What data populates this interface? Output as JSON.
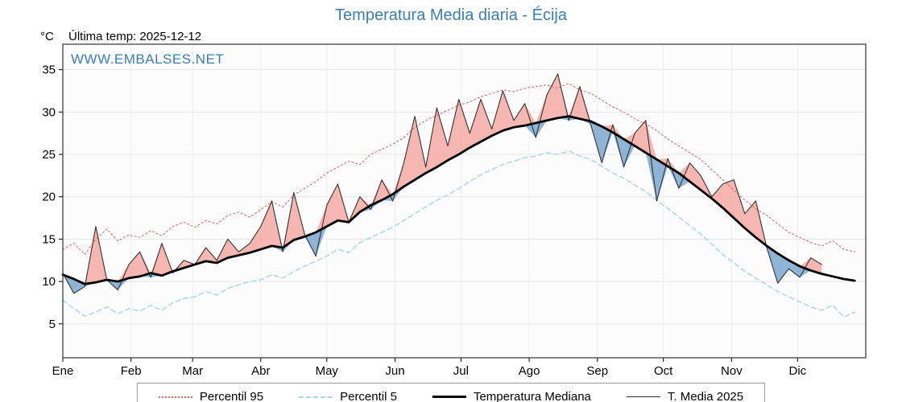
{
  "header": {
    "title": "Temperatura Media diaria - Écija",
    "unit_label": "°C",
    "last_temp_label": "Última temp: 2025-12-12",
    "watermark": "WWW.EMBALSES.NET"
  },
  "colors": {
    "title": "#3b7eb3",
    "watermark": "#3b7eb3",
    "percentil95": "#e05c5c",
    "percentil5": "#a9d6e5",
    "mediana": "#000000",
    "t_media_2025": "#333333",
    "fill_above": "#f4a9a3",
    "fill_below": "#7ba7cf",
    "grid": "#e6e6e6",
    "plot_bg": "#fcfcfc",
    "plot_border": "#333333"
  },
  "legend": [
    {
      "label": "Percentil 95",
      "style": "dotted",
      "color": "#e05c5c"
    },
    {
      "label": "Percentil 5",
      "style": "dashed",
      "color": "#a9d6e5"
    },
    {
      "label": "Temperatura Mediana",
      "style": "solid-thick",
      "color": "#000000"
    },
    {
      "label": "T. Media 2025",
      "style": "solid-thin",
      "color": "#333333"
    }
  ],
  "chart_data": {
    "type": "line",
    "title": "Temperatura Media diaria - Écija",
    "xlabel": "",
    "ylabel": "°C",
    "ylim": [
      1,
      38
    ],
    "y_ticks": [
      5,
      10,
      15,
      20,
      25,
      30,
      35
    ],
    "grid": true,
    "legend_position": "bottom",
    "x_months": [
      "Ene",
      "Feb",
      "Mar",
      "Abr",
      "May",
      "Jun",
      "Jul",
      "Ago",
      "Sep",
      "Oct",
      "Nov",
      "Dic"
    ],
    "month_start_days": [
      1,
      32,
      60,
      91,
      121,
      152,
      182,
      213,
      244,
      274,
      305,
      335
    ],
    "x_unit": "day_of_year",
    "x_days": [
      1,
      6,
      11,
      16,
      21,
      26,
      31,
      36,
      41,
      46,
      51,
      56,
      61,
      66,
      71,
      76,
      81,
      86,
      91,
      96,
      101,
      106,
      111,
      116,
      121,
      126,
      131,
      136,
      141,
      146,
      151,
      156,
      161,
      166,
      171,
      176,
      181,
      186,
      191,
      196,
      201,
      206,
      211,
      216,
      221,
      226,
      231,
      236,
      241,
      246,
      251,
      256,
      261,
      266,
      271,
      276,
      281,
      286,
      291,
      296,
      301,
      306,
      311,
      316,
      321,
      326,
      331,
      336,
      341,
      346,
      351,
      356,
      361
    ],
    "series": [
      {
        "name": "Percentil 95",
        "values": [
          13.8,
          14.5,
          13.2,
          15.0,
          16.2,
          14.8,
          15.5,
          15.2,
          16.0,
          15.4,
          16.5,
          17.0,
          16.4,
          17.2,
          16.8,
          17.8,
          18.2,
          17.6,
          18.5,
          19.4,
          18.8,
          20.2,
          21.0,
          21.8,
          22.8,
          23.5,
          24.2,
          23.8,
          25.0,
          25.6,
          26.2,
          27.0,
          28.2,
          29.0,
          29.6,
          30.2,
          30.8,
          31.2,
          31.8,
          32.2,
          32.6,
          32.4,
          32.8,
          33.0,
          33.2,
          32.8,
          33.4,
          32.6,
          32.2,
          31.4,
          30.6,
          30.0,
          29.2,
          28.6,
          27.8,
          26.8,
          26.0,
          25.2,
          24.4,
          23.2,
          22.0,
          20.8,
          19.6,
          18.6,
          17.8,
          16.8,
          15.8,
          15.2,
          14.6,
          14.2,
          14.8,
          13.8,
          13.5
        ]
      },
      {
        "name": "Percentil 5",
        "values": [
          7.8,
          6.8,
          5.9,
          6.4,
          7.0,
          6.2,
          6.8,
          6.5,
          7.2,
          6.6,
          7.5,
          8.0,
          8.2,
          8.8,
          8.4,
          9.2,
          9.6,
          10.0,
          10.2,
          10.8,
          10.4,
          11.2,
          11.8,
          12.4,
          13.0,
          13.8,
          13.4,
          14.6,
          15.2,
          15.8,
          16.4,
          17.2,
          18.0,
          18.8,
          19.6,
          20.2,
          21.0,
          21.8,
          22.6,
          23.2,
          23.8,
          24.2,
          24.6,
          24.8,
          25.2,
          25.0,
          25.4,
          24.8,
          24.4,
          23.6,
          22.8,
          22.2,
          21.4,
          20.6,
          19.6,
          18.6,
          17.6,
          16.6,
          15.6,
          14.4,
          13.2,
          12.2,
          11.2,
          10.4,
          9.6,
          8.8,
          8.2,
          7.6,
          7.0,
          6.6,
          7.2,
          5.8,
          6.4
        ]
      },
      {
        "name": "Temperatura Mediana",
        "values": [
          10.8,
          10.3,
          9.7,
          9.9,
          10.2,
          10.0,
          10.4,
          10.6,
          11.0,
          10.7,
          11.2,
          11.6,
          12.0,
          12.4,
          12.2,
          12.8,
          13.1,
          13.4,
          13.8,
          14.2,
          14.0,
          14.9,
          15.3,
          15.8,
          16.5,
          17.2,
          17.0,
          18.2,
          19.0,
          19.6,
          20.3,
          21.2,
          22.0,
          22.8,
          23.5,
          24.3,
          25.0,
          25.8,
          26.5,
          27.2,
          27.8,
          28.2,
          28.4,
          28.7,
          29.0,
          29.3,
          29.5,
          29.2,
          28.9,
          28.3,
          27.6,
          26.8,
          26.0,
          25.2,
          24.4,
          23.6,
          22.8,
          21.8,
          20.8,
          19.8,
          18.7,
          17.5,
          16.3,
          15.2,
          14.2,
          13.3,
          12.5,
          11.8,
          11.3,
          10.9,
          10.6,
          10.3,
          10.1
        ]
      },
      {
        "name": "T. Media 2025",
        "values": [
          11.0,
          8.6,
          9.4,
          16.5,
          10.2,
          9.0,
          12.0,
          13.5,
          10.5,
          14.5,
          11.0,
          12.5,
          12.0,
          14.0,
          12.5,
          15.0,
          13.5,
          14.5,
          16.5,
          19.5,
          13.5,
          20.5,
          15.5,
          13.0,
          19.0,
          21.5,
          17.0,
          20.0,
          18.5,
          22.0,
          19.5,
          24.0,
          29.5,
          23.5,
          30.5,
          26.0,
          31.5,
          27.5,
          31.5,
          28.0,
          32.5,
          29.0,
          31.0,
          27.0,
          32.0,
          34.5,
          29.0,
          33.0,
          28.5,
          24.0,
          28.5,
          23.5,
          27.5,
          29.0,
          19.5,
          24.5,
          21.0,
          24.0,
          22.5,
          20.0,
          21.5,
          22.0,
          18.0,
          19.5,
          14.0,
          9.8,
          11.5,
          10.5,
          12.8,
          12.0,
          null,
          null,
          null
        ]
      }
    ]
  }
}
